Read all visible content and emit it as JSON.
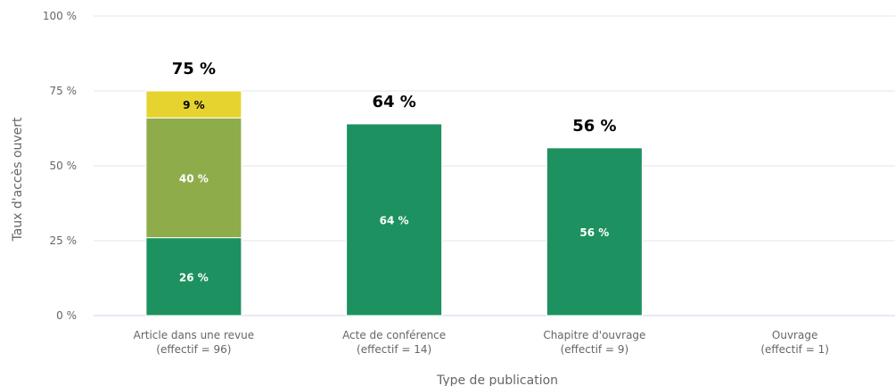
{
  "chart_data": {
    "type": "bar",
    "stacked": true,
    "title": "",
    "xlabel": "Type de publication",
    "ylabel": "Taux d'accès ouvert",
    "ylim": [
      0,
      100
    ],
    "yticks": [
      "0 %",
      "25 %",
      "50 %",
      "75 %",
      "100 %"
    ],
    "grid": true,
    "categories": [
      [
        "Article dans une revue",
        "(effectif = 96)"
      ],
      [
        "Acte de conférence",
        "(effectif = 14)"
      ],
      [
        "Chapitre d'ouvrage",
        "(effectif = 9)"
      ],
      [
        "Ouvrage",
        "(effectif = 1)"
      ]
    ],
    "series": [
      {
        "color": "#1d9160",
        "label_color": "#ffffff",
        "values": [
          26,
          64,
          56,
          0
        ],
        "labels": [
          "26 %",
          "64 %",
          "56 %",
          ""
        ]
      },
      {
        "color": "#8fac4b",
        "label_color": "#ffffff",
        "values": [
          40,
          0,
          0,
          0
        ],
        "labels": [
          "40 %",
          "",
          "",
          ""
        ]
      },
      {
        "color": "#e6d330",
        "label_color": "#000000",
        "values": [
          9,
          0,
          0,
          0
        ],
        "labels": [
          "9 %",
          "",
          "",
          ""
        ]
      }
    ],
    "totals": [
      75,
      64,
      56,
      0
    ],
    "total_labels": [
      "75 %",
      "64 %",
      "56 %",
      ""
    ]
  }
}
